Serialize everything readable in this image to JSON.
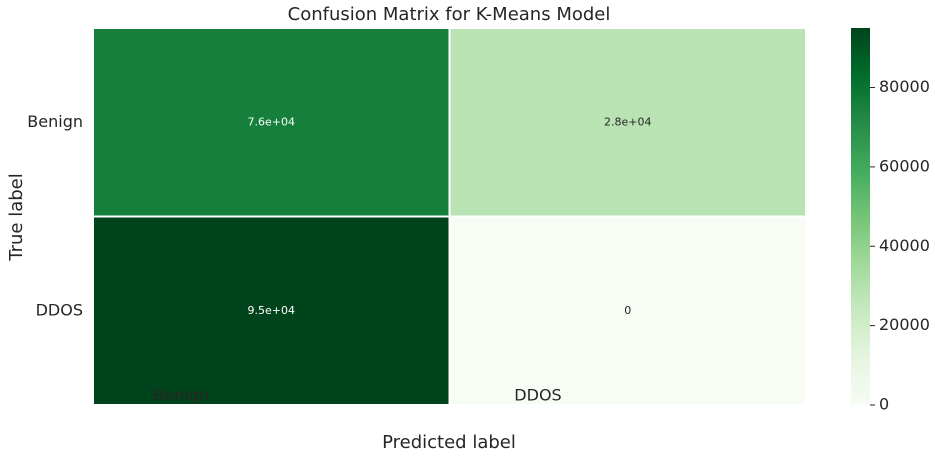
{
  "chart_data": {
    "type": "heatmap",
    "title": "Confusion Matrix for K-Means Model",
    "x_label": "Predicted label",
    "y_label": "True label",
    "x_categories": [
      "Benign",
      "DDOS"
    ],
    "y_categories": [
      "Benign",
      "DDOS"
    ],
    "values": [
      [
        76000,
        28000
      ],
      [
        95000,
        0
      ]
    ],
    "value_labels": [
      [
        "7.6e+04",
        "2.8e+04"
      ],
      [
        "9.5e+04",
        "0"
      ]
    ],
    "colormap": "Greens",
    "clim": [
      0,
      95000
    ],
    "cticks": [
      0,
      20000,
      40000,
      60000,
      80000
    ]
  }
}
